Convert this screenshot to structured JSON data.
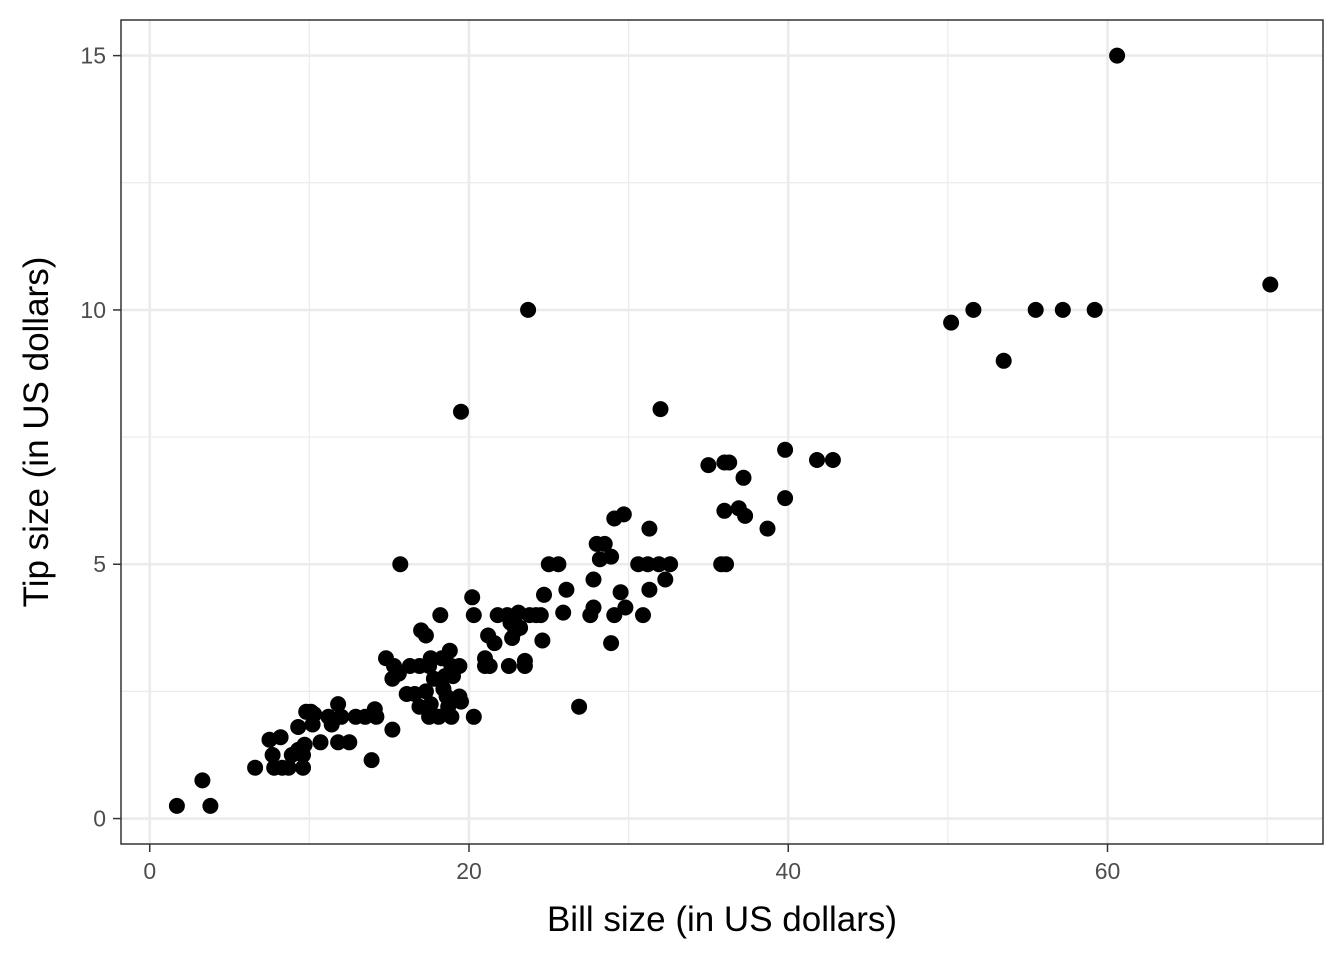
{
  "chart_data": {
    "type": "scatter",
    "title": "",
    "xlabel": "Bill size (in US dollars)",
    "ylabel": "Tip size (in US dollars)",
    "xlim": [
      -1.8,
      73.5
    ],
    "ylim": [
      -0.5,
      15.7
    ],
    "x_ticks": [
      0,
      20,
      40,
      60
    ],
    "y_ticks": [
      0,
      5,
      10,
      15
    ],
    "x_tick_labels": [
      "0",
      "20",
      "40",
      "60"
    ],
    "y_tick_labels": [
      "0",
      "5",
      "10",
      "15"
    ],
    "grid": true,
    "legend": "none",
    "point_color": "#000000",
    "panel_border_color": "#333333",
    "grid_color": "#ebebeb",
    "points": [
      [
        60.6,
        15.0
      ],
      [
        70.2,
        10.5
      ],
      [
        23.7,
        10.0
      ],
      [
        50.2,
        9.75
      ],
      [
        51.6,
        10.0
      ],
      [
        53.5,
        9.0
      ],
      [
        55.5,
        10.0
      ],
      [
        57.2,
        10.0
      ],
      [
        59.2,
        10.0
      ],
      [
        19.5,
        8.0
      ],
      [
        32.0,
        8.05
      ],
      [
        39.8,
        7.25
      ],
      [
        41.8,
        7.05
      ],
      [
        42.8,
        7.05
      ],
      [
        35.0,
        6.95
      ],
      [
        36.0,
        7.0
      ],
      [
        36.3,
        7.0
      ],
      [
        37.2,
        6.7
      ],
      [
        39.8,
        6.3
      ],
      [
        36.0,
        6.05
      ],
      [
        36.9,
        6.1
      ],
      [
        37.3,
        5.95
      ],
      [
        38.7,
        5.7
      ],
      [
        29.1,
        5.9
      ],
      [
        29.7,
        5.98
      ],
      [
        31.3,
        5.7
      ],
      [
        28.0,
        5.4
      ],
      [
        28.5,
        5.4
      ],
      [
        28.9,
        5.15
      ],
      [
        28.2,
        5.1
      ],
      [
        25.0,
        5.0
      ],
      [
        25.6,
        5.0
      ],
      [
        30.6,
        5.0
      ],
      [
        31.2,
        5.0
      ],
      [
        31.9,
        5.0
      ],
      [
        32.6,
        5.0
      ],
      [
        35.8,
        5.0
      ],
      [
        36.1,
        5.0
      ],
      [
        15.7,
        5.0
      ],
      [
        32.3,
        4.7
      ],
      [
        27.8,
        4.7
      ],
      [
        26.1,
        4.5
      ],
      [
        29.5,
        4.45
      ],
      [
        31.3,
        4.5
      ],
      [
        24.7,
        4.4
      ],
      [
        20.2,
        4.35
      ],
      [
        27.8,
        4.15
      ],
      [
        29.8,
        4.15
      ],
      [
        25.9,
        4.05
      ],
      [
        27.6,
        4.0
      ],
      [
        29.1,
        4.0
      ],
      [
        30.9,
        4.0
      ],
      [
        20.3,
        4.0
      ],
      [
        21.8,
        4.0
      ],
      [
        22.4,
        4.0
      ],
      [
        23.1,
        4.05
      ],
      [
        23.8,
        4.0
      ],
      [
        24.2,
        4.0
      ],
      [
        24.5,
        4.0
      ],
      [
        18.2,
        4.0
      ],
      [
        22.6,
        3.85
      ],
      [
        23.2,
        3.75
      ],
      [
        22.9,
        3.7
      ],
      [
        17.0,
        3.7
      ],
      [
        17.3,
        3.6
      ],
      [
        21.2,
        3.6
      ],
      [
        22.7,
        3.55
      ],
      [
        21.6,
        3.45
      ],
      [
        24.6,
        3.5
      ],
      [
        28.9,
        3.45
      ],
      [
        18.8,
        3.3
      ],
      [
        18.3,
        3.15
      ],
      [
        14.8,
        3.15
      ],
      [
        17.6,
        3.15
      ],
      [
        23.5,
        3.1
      ],
      [
        21.0,
        3.15
      ],
      [
        15.3,
        3.0
      ],
      [
        16.3,
        3.0
      ],
      [
        16.9,
        3.0
      ],
      [
        17.5,
        3.0
      ],
      [
        18.9,
        3.0
      ],
      [
        19.4,
        3.0
      ],
      [
        21.0,
        3.0
      ],
      [
        21.3,
        3.0
      ],
      [
        22.5,
        3.0
      ],
      [
        23.5,
        3.0
      ],
      [
        15.6,
        2.85
      ],
      [
        15.2,
        2.75
      ],
      [
        17.8,
        2.75
      ],
      [
        18.5,
        2.8
      ],
      [
        19.0,
        2.8
      ],
      [
        18.4,
        2.55
      ],
      [
        16.1,
        2.45
      ],
      [
        16.6,
        2.45
      ],
      [
        17.3,
        2.5
      ],
      [
        18.6,
        2.4
      ],
      [
        19.4,
        2.4
      ],
      [
        19.5,
        2.3
      ],
      [
        16.9,
        2.2
      ],
      [
        17.6,
        2.25
      ],
      [
        18.7,
        2.2
      ],
      [
        17.5,
        2.0
      ],
      [
        18.1,
        2.0
      ],
      [
        18.9,
        2.0
      ],
      [
        20.3,
        2.0
      ],
      [
        26.9,
        2.2
      ],
      [
        14.1,
        2.15
      ],
      [
        11.8,
        2.25
      ],
      [
        10.1,
        2.1
      ],
      [
        10.3,
        2.05
      ],
      [
        9.8,
        2.1
      ],
      [
        11.2,
        2.0
      ],
      [
        12.0,
        2.0
      ],
      [
        12.9,
        2.0
      ],
      [
        13.5,
        2.0
      ],
      [
        14.2,
        2.0
      ],
      [
        10.2,
        1.85
      ],
      [
        11.4,
        1.85
      ],
      [
        9.3,
        1.8
      ],
      [
        15.2,
        1.75
      ],
      [
        8.2,
        1.6
      ],
      [
        7.5,
        1.55
      ],
      [
        10.7,
        1.5
      ],
      [
        11.8,
        1.5
      ],
      [
        12.5,
        1.5
      ],
      [
        9.7,
        1.45
      ],
      [
        9.3,
        1.35
      ],
      [
        7.7,
        1.25
      ],
      [
        8.9,
        1.25
      ],
      [
        9.6,
        1.25
      ],
      [
        13.9,
        1.15
      ],
      [
        6.6,
        1.0
      ],
      [
        7.8,
        1.0
      ],
      [
        8.3,
        1.0
      ],
      [
        8.7,
        1.0
      ],
      [
        9.6,
        1.0
      ],
      [
        3.3,
        0.75
      ],
      [
        1.7,
        0.25
      ],
      [
        3.8,
        0.25
      ]
    ]
  }
}
